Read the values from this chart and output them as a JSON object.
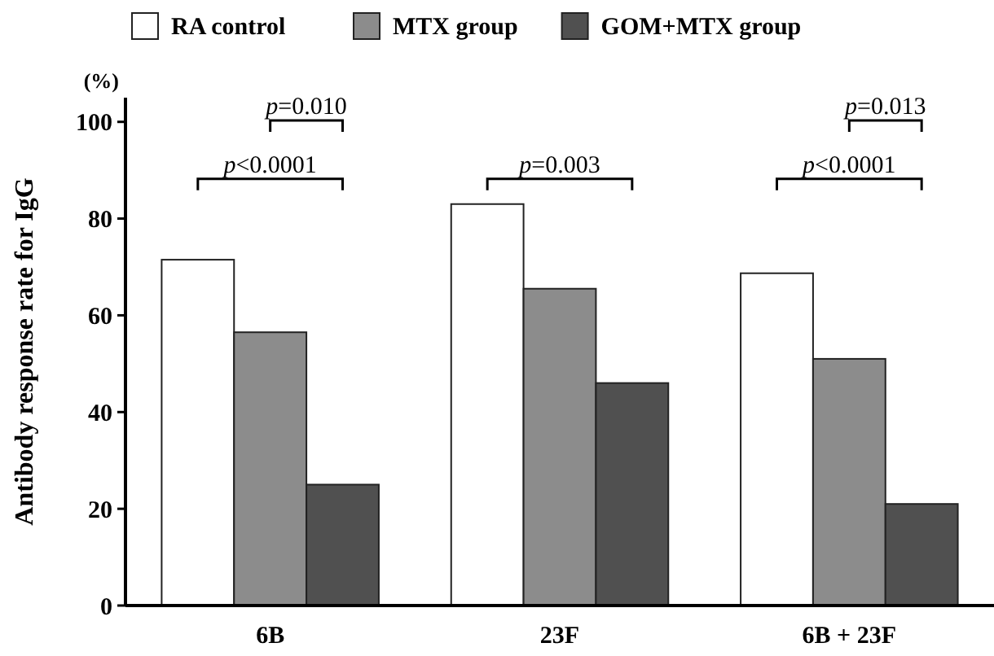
{
  "chart_data": {
    "type": "bar",
    "ylabel": "Antibody response rate for IgG",
    "categories": [
      "6B",
      "23F",
      "6B + 23F"
    ],
    "series": [
      {
        "name": "RA control",
        "color": "#ffffff",
        "values": [
          71.5,
          83,
          68.7
        ]
      },
      {
        "name": "MTX group",
        "color": "#8c8c8c",
        "values": [
          56.5,
          65.5,
          51
        ]
      },
      {
        "name": "GOM+MTX group",
        "color": "#505050",
        "values": [
          25,
          46,
          21
        ]
      }
    ],
    "ylim": [
      0,
      105
    ],
    "yticks": [
      0,
      20,
      40,
      60,
      80,
      100
    ],
    "grid": false,
    "legend": "top",
    "annotations": [
      "(%)",
      "p<0.0001",
      "p=0.010",
      "p=0.003",
      "p<0.0001",
      "p=0.013"
    ]
  }
}
